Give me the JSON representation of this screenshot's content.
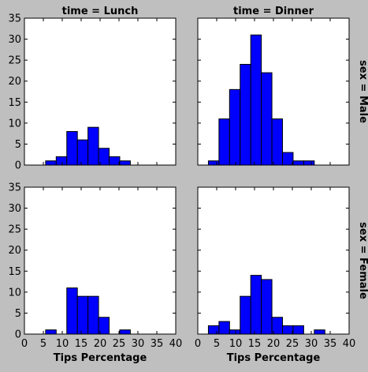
{
  "chart_data": {
    "type": "bar",
    "subtype": "histogram-facet-grid",
    "xlabel": "Tips Percentage",
    "xlim": [
      0,
      40
    ],
    "ylim": [
      0,
      35
    ],
    "xticks": [
      "0",
      "5",
      "10",
      "15",
      "20",
      "25",
      "30",
      "35",
      "40"
    ],
    "yticks": [
      "0",
      "5",
      "10",
      "15",
      "20",
      "25",
      "30",
      "35"
    ],
    "bin_width": 2.8,
    "bar_color": "#0000ff",
    "background_color": "#bfbfbf",
    "col_titles": [
      "time = Lunch",
      "time = Dinner"
    ],
    "row_titles": [
      "sex = Male",
      "sex = Female"
    ],
    "panels": [
      {
        "row": 0,
        "col": 0,
        "time": "Lunch",
        "sex": "Male",
        "bins": [
          {
            "x": 5.6,
            "value": 1
          },
          {
            "x": 8.4,
            "value": 2
          },
          {
            "x": 11.2,
            "value": 8
          },
          {
            "x": 14.0,
            "value": 6
          },
          {
            "x": 16.8,
            "value": 9
          },
          {
            "x": 19.6,
            "value": 4
          },
          {
            "x": 22.4,
            "value": 2
          },
          {
            "x": 25.2,
            "value": 1
          }
        ]
      },
      {
        "row": 0,
        "col": 1,
        "time": "Dinner",
        "sex": "Male",
        "bins": [
          {
            "x": 2.8,
            "value": 1
          },
          {
            "x": 5.6,
            "value": 11
          },
          {
            "x": 8.4,
            "value": 18
          },
          {
            "x": 11.2,
            "value": 24
          },
          {
            "x": 14.0,
            "value": 31
          },
          {
            "x": 16.8,
            "value": 22
          },
          {
            "x": 19.6,
            "value": 11
          },
          {
            "x": 22.4,
            "value": 3
          },
          {
            "x": 25.2,
            "value": 1
          },
          {
            "x": 28.0,
            "value": 1
          }
        ]
      },
      {
        "row": 1,
        "col": 0,
        "time": "Lunch",
        "sex": "Female",
        "bins": [
          {
            "x": 5.6,
            "value": 1
          },
          {
            "x": 11.2,
            "value": 11
          },
          {
            "x": 14.0,
            "value": 9
          },
          {
            "x": 16.8,
            "value": 9
          },
          {
            "x": 19.6,
            "value": 4
          },
          {
            "x": 25.2,
            "value": 1
          }
        ]
      },
      {
        "row": 1,
        "col": 1,
        "time": "Dinner",
        "sex": "Female",
        "bins": [
          {
            "x": 2.8,
            "value": 2
          },
          {
            "x": 5.6,
            "value": 3
          },
          {
            "x": 8.4,
            "value": 1
          },
          {
            "x": 11.2,
            "value": 9
          },
          {
            "x": 14.0,
            "value": 14
          },
          {
            "x": 16.8,
            "value": 13
          },
          {
            "x": 19.6,
            "value": 4
          },
          {
            "x": 22.4,
            "value": 2
          },
          {
            "x": 25.2,
            "value": 2
          },
          {
            "x": 30.8,
            "value": 1
          }
        ]
      }
    ]
  }
}
